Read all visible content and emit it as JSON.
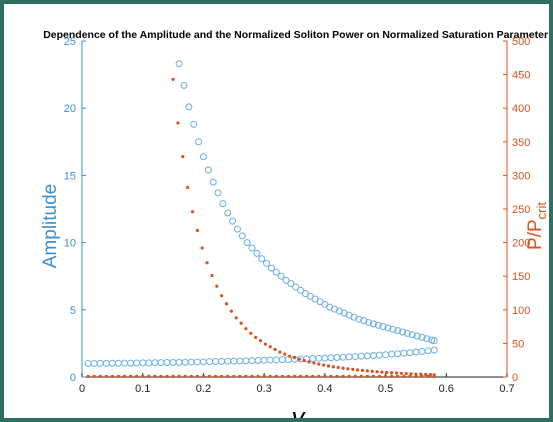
{
  "chart_data": {
    "type": "scatter",
    "title": "Dependence of the Amplitude and the Normalized Soliton Power on Normalized Saturation Parameter γ",
    "xlabel": "γ",
    "ylabel_left": "Amplitude",
    "ylabel_right": "P/P_crit",
    "ylabel_right_main": "P/P",
    "ylabel_right_sub": "crit",
    "xlim": [
      0,
      0.7
    ],
    "ylim_left": [
      0,
      25
    ],
    "ylim_right": [
      0,
      500
    ],
    "x_ticks": [
      "0",
      "0.1",
      "0.2",
      "0.3",
      "0.4",
      "0.5",
      "0.6",
      "0.7"
    ],
    "y_left_ticks": [
      "0",
      "5",
      "10",
      "15",
      "20",
      "25"
    ],
    "y_right_ticks": [
      "0",
      "50",
      "100",
      "150",
      "200",
      "250",
      "300",
      "350",
      "400",
      "450",
      "500"
    ],
    "colors": {
      "left": "#3d8fd1",
      "right": "#d9531e",
      "markers_left": "#6aaee3"
    },
    "series": [
      {
        "axis": "left",
        "marker": "open-circle",
        "x": [
          0.16,
          0.168,
          0.176,
          0.184,
          0.192,
          0.2,
          0.208,
          0.216,
          0.224,
          0.232,
          0.24,
          0.248,
          0.256,
          0.264,
          0.272,
          0.28,
          0.288,
          0.296,
          0.304,
          0.312,
          0.32,
          0.328,
          0.336,
          0.344,
          0.352,
          0.36,
          0.368,
          0.376,
          0.384,
          0.392,
          0.4,
          0.408,
          0.416,
          0.424,
          0.432,
          0.44,
          0.448,
          0.456,
          0.464,
          0.472,
          0.48,
          0.488,
          0.496,
          0.504,
          0.512,
          0.52,
          0.528,
          0.536,
          0.544,
          0.552,
          0.56,
          0.568,
          0.576,
          0.58
        ],
        "y": [
          23.3,
          21.7,
          20.1,
          18.8,
          17.5,
          16.4,
          15.4,
          14.5,
          13.7,
          12.9,
          12.2,
          11.6,
          11.0,
          10.5,
          10.0,
          9.6,
          9.2,
          8.8,
          8.45,
          8.1,
          7.8,
          7.5,
          7.2,
          6.95,
          6.7,
          6.45,
          6.2,
          6.0,
          5.8,
          5.6,
          5.4,
          5.2,
          5.05,
          4.9,
          4.75,
          4.6,
          4.45,
          4.3,
          4.2,
          4.05,
          3.95,
          3.85,
          3.75,
          3.65,
          3.55,
          3.45,
          3.35,
          3.25,
          3.15,
          3.05,
          2.95,
          2.85,
          2.75,
          2.7
        ]
      },
      {
        "axis": "left",
        "marker": "open-circle",
        "x": [
          0.01,
          0.02,
          0.03,
          0.04,
          0.05,
          0.06,
          0.07,
          0.08,
          0.09,
          0.1,
          0.11,
          0.12,
          0.13,
          0.14,
          0.15,
          0.16,
          0.17,
          0.18,
          0.19,
          0.2,
          0.21,
          0.22,
          0.23,
          0.24,
          0.25,
          0.26,
          0.27,
          0.28,
          0.29,
          0.3,
          0.31,
          0.32,
          0.33,
          0.34,
          0.35,
          0.36,
          0.37,
          0.38,
          0.39,
          0.4,
          0.41,
          0.42,
          0.43,
          0.44,
          0.45,
          0.46,
          0.47,
          0.48,
          0.49,
          0.5,
          0.51,
          0.52,
          0.53,
          0.54,
          0.55,
          0.56,
          0.57,
          0.58
        ],
        "y": [
          1.0,
          1.0,
          1.01,
          1.01,
          1.02,
          1.02,
          1.03,
          1.03,
          1.04,
          1.05,
          1.05,
          1.06,
          1.07,
          1.08,
          1.08,
          1.09,
          1.1,
          1.11,
          1.12,
          1.13,
          1.14,
          1.15,
          1.16,
          1.17,
          1.18,
          1.19,
          1.2,
          1.22,
          1.23,
          1.24,
          1.26,
          1.27,
          1.29,
          1.3,
          1.32,
          1.34,
          1.35,
          1.37,
          1.39,
          1.41,
          1.43,
          1.45,
          1.47,
          1.5,
          1.52,
          1.55,
          1.57,
          1.6,
          1.63,
          1.66,
          1.7,
          1.73,
          1.77,
          1.81,
          1.85,
          1.9,
          1.95,
          2.0
        ]
      },
      {
        "axis": "right",
        "marker": "filled-dot",
        "x": [
          0.15,
          0.158,
          0.166,
          0.174,
          0.182,
          0.19,
          0.198,
          0.206,
          0.214,
          0.222,
          0.23,
          0.238,
          0.246,
          0.254,
          0.262,
          0.27,
          0.278,
          0.286,
          0.294,
          0.302,
          0.31,
          0.318,
          0.326,
          0.334,
          0.342,
          0.35,
          0.358,
          0.366,
          0.374,
          0.382,
          0.39,
          0.398,
          0.406,
          0.414,
          0.422,
          0.43,
          0.438,
          0.446,
          0.454,
          0.462,
          0.47,
          0.478,
          0.486,
          0.494,
          0.502,
          0.51,
          0.518,
          0.526,
          0.534,
          0.542,
          0.55,
          0.558,
          0.566,
          0.574,
          0.58
        ],
        "y": [
          443,
          378,
          328,
          282,
          246,
          218,
          192,
          170,
          151,
          135,
          121,
          109,
          98,
          88,
          80,
          72,
          65,
          59,
          54,
          49,
          45,
          41,
          37,
          34,
          31,
          29,
          26.5,
          24.5,
          22.5,
          20.8,
          19.2,
          17.8,
          16.4,
          15.2,
          14.1,
          13.1,
          12.2,
          11.3,
          10.5,
          9.8,
          9.1,
          8.5,
          7.9,
          7.3,
          6.8,
          6.3,
          5.9,
          5.5,
          5.1,
          4.7,
          4.4,
          4.1,
          3.8,
          3.5,
          3.3
        ]
      },
      {
        "axis": "right",
        "marker": "filled-dot",
        "x": [
          0.01,
          0.02,
          0.03,
          0.04,
          0.05,
          0.06,
          0.07,
          0.08,
          0.09,
          0.1,
          0.11,
          0.12,
          0.13,
          0.14,
          0.15,
          0.16,
          0.17,
          0.18,
          0.19,
          0.2,
          0.21,
          0.22,
          0.23,
          0.24,
          0.25,
          0.26,
          0.27,
          0.28,
          0.29,
          0.3,
          0.31,
          0.32,
          0.33,
          0.34,
          0.35,
          0.36,
          0.37,
          0.38,
          0.39,
          0.4,
          0.41,
          0.42,
          0.43,
          0.44,
          0.45,
          0.46,
          0.47,
          0.48,
          0.49,
          0.5,
          0.51,
          0.52,
          0.53,
          0.54,
          0.55,
          0.56,
          0.57,
          0.58
        ],
        "y": [
          1.0,
          1.0,
          1.0,
          1.0,
          1.0,
          1.0,
          1.0,
          1.0,
          1.0,
          1.0,
          1.0,
          1.0,
          1.0,
          1.0,
          1.0,
          1.0,
          1.0,
          1.0,
          1.0,
          1.0,
          1.0,
          1.0,
          1.0,
          1.0,
          1.0,
          1.0,
          1.0,
          1.0,
          1.0,
          1.0,
          1.0,
          1.0,
          1.0,
          1.0,
          1.0,
          1.0,
          1.0,
          1.0,
          1.0,
          1.0,
          1.0,
          1.0,
          1.0,
          1.0,
          1.0,
          1.0,
          1.0,
          1.0,
          1.0,
          1.0,
          1.0,
          1.0,
          1.0,
          1.0,
          1.0,
          1.0,
          1.0,
          1.0
        ]
      }
    ]
  }
}
